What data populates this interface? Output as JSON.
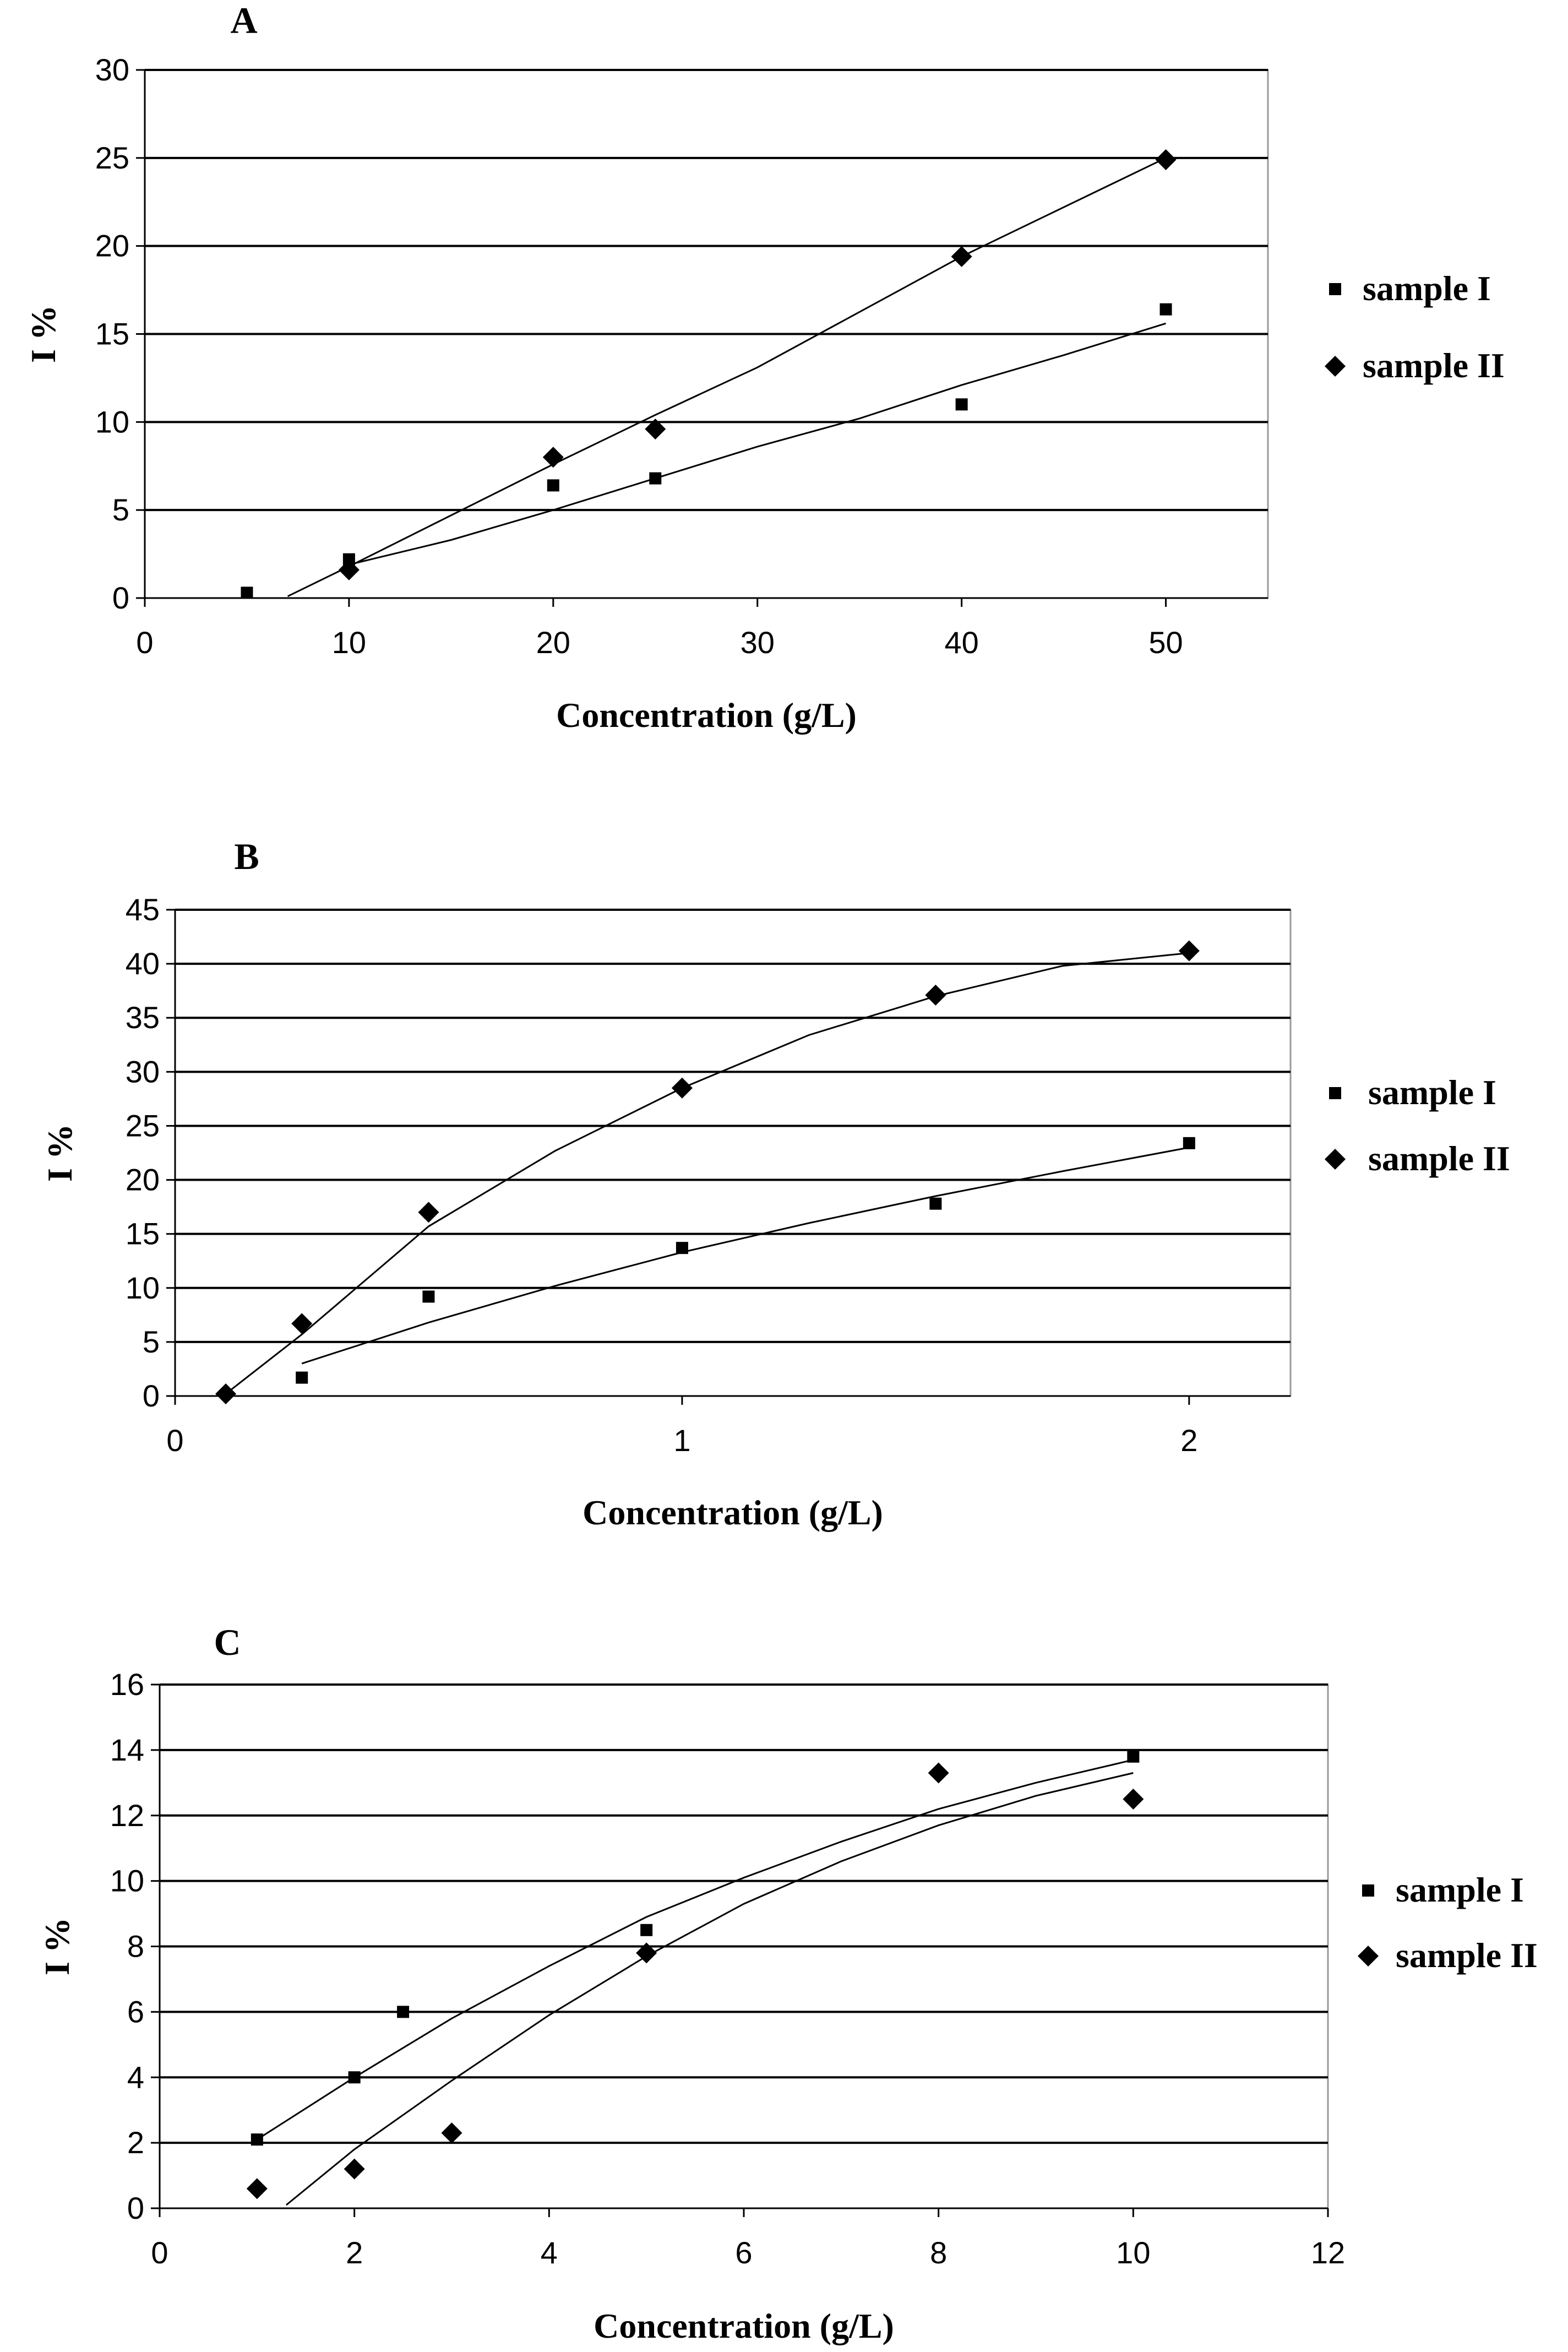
{
  "chart_data": [
    {
      "type": "scatter",
      "panel_label": "A",
      "xlabel": "Concentration (g/L)",
      "ylabel": "I %",
      "xlim": [
        0,
        55
      ],
      "ylim": [
        0,
        30
      ],
      "xticks": [
        0,
        10,
        20,
        30,
        40,
        50
      ],
      "xtick_labels": [
        "0",
        "10",
        "20",
        "30",
        "40",
        "50"
      ],
      "yticks": [
        0,
        5,
        10,
        15,
        20,
        25,
        30
      ],
      "ytick_labels": [
        "0",
        "5",
        "10",
        "15",
        "20",
        "25",
        "30"
      ],
      "grid": "horizontal",
      "legend_position": "right",
      "series": [
        {
          "name": "sample I",
          "marker": "square",
          "points": [
            [
              5,
              0.3
            ],
            [
              10,
              2.2
            ],
            [
              20,
              6.4
            ],
            [
              25,
              6.8
            ],
            [
              40,
              11.0
            ],
            [
              50,
              16.4
            ]
          ],
          "trend": [
            [
              10,
              1.9
            ],
            [
              15,
              3.3
            ],
            [
              20,
              5.0
            ],
            [
              25,
              6.8
            ],
            [
              30,
              8.6
            ],
            [
              35,
              10.2
            ],
            [
              40,
              12.1
            ],
            [
              45,
              13.8
            ],
            [
              50,
              15.6
            ]
          ]
        },
        {
          "name": "sample II",
          "marker": "diamond",
          "points": [
            [
              10,
              1.6
            ],
            [
              20,
              8.0
            ],
            [
              25,
              9.6
            ],
            [
              40,
              19.4
            ],
            [
              50,
              24.9
            ]
          ],
          "trend": [
            [
              7,
              0.1
            ],
            [
              10,
              1.8
            ],
            [
              20,
              7.6
            ],
            [
              25,
              10.4
            ],
            [
              30,
              13.1
            ],
            [
              40,
              19.4
            ],
            [
              50,
              25.0
            ]
          ]
        }
      ]
    },
    {
      "type": "scatter",
      "panel_label": "B",
      "xlabel": "Concentration (g/L)",
      "ylabel": "I %",
      "xlim": [
        0,
        2.2
      ],
      "ylim": [
        0,
        45
      ],
      "xticks": [
        0,
        1,
        2
      ],
      "xtick_labels": [
        "0",
        "1",
        "2"
      ],
      "yticks": [
        0,
        5,
        10,
        15,
        20,
        25,
        30,
        35,
        40,
        45
      ],
      "ytick_labels": [
        "0",
        "5",
        "10",
        "15",
        "20",
        "25",
        "30",
        "35",
        "40",
        "45"
      ],
      "grid": "horizontal",
      "legend_position": "right",
      "series": [
        {
          "name": "sample I",
          "marker": "square",
          "points": [
            [
              0.25,
              1.7
            ],
            [
              0.5,
              9.2
            ],
            [
              1.0,
              13.7
            ],
            [
              1.5,
              17.8
            ],
            [
              2.0,
              23.4
            ]
          ],
          "trend": [
            [
              0.25,
              3.0
            ],
            [
              0.5,
              6.8
            ],
            [
              0.75,
              10.2
            ],
            [
              1.0,
              13.3
            ],
            [
              1.25,
              16.0
            ],
            [
              1.5,
              18.5
            ],
            [
              1.75,
              20.8
            ],
            [
              2.0,
              23.0
            ]
          ]
        },
        {
          "name": "sample II",
          "marker": "diamond",
          "points": [
            [
              0.1,
              0.2
            ],
            [
              0.25,
              6.7
            ],
            [
              0.5,
              17.0
            ],
            [
              1.0,
              28.5
            ],
            [
              1.5,
              37.1
            ],
            [
              2.0,
              41.2
            ]
          ],
          "trend": [
            [
              0.1,
              0.2
            ],
            [
              0.25,
              5.7
            ],
            [
              0.5,
              15.7
            ],
            [
              0.75,
              22.7
            ],
            [
              1.0,
              28.5
            ],
            [
              1.25,
              33.4
            ],
            [
              1.5,
              37.0
            ],
            [
              1.75,
              39.8
            ],
            [
              2.0,
              41.0
            ]
          ]
        }
      ]
    },
    {
      "type": "scatter",
      "panel_label": "C",
      "xlabel": "Concentration (g/L)",
      "ylabel": "I %",
      "xlim": [
        0,
        12
      ],
      "ylim": [
        0,
        16
      ],
      "xticks": [
        0,
        2,
        4,
        6,
        8,
        10,
        12
      ],
      "xtick_labels": [
        "0",
        "2",
        "4",
        "6",
        "8",
        "10",
        "12"
      ],
      "yticks": [
        0,
        2,
        4,
        6,
        8,
        10,
        12,
        14,
        16
      ],
      "ytick_labels": [
        "0",
        "2",
        "4",
        "6",
        "8",
        "10",
        "12",
        "14",
        "16"
      ],
      "grid": "horizontal",
      "legend_position": "right",
      "series": [
        {
          "name": "sample I",
          "marker": "square",
          "points": [
            [
              1,
              2.1
            ],
            [
              2,
              4.0
            ],
            [
              2.5,
              6.0
            ],
            [
              5,
              8.5
            ],
            [
              10,
              13.8
            ]
          ],
          "trend": [
            [
              1,
              2.1
            ],
            [
              2,
              4.0
            ],
            [
              3,
              5.8
            ],
            [
              4,
              7.4
            ],
            [
              5,
              8.9
            ],
            [
              6,
              10.1
            ],
            [
              7,
              11.2
            ],
            [
              8,
              12.2
            ],
            [
              9,
              13.0
            ],
            [
              10,
              13.7
            ]
          ]
        },
        {
          "name": "sample II",
          "marker": "diamond",
          "points": [
            [
              1,
              0.6
            ],
            [
              2,
              1.2
            ],
            [
              3,
              2.3
            ],
            [
              5,
              7.8
            ],
            [
              8,
              13.3
            ],
            [
              10,
              12.5
            ]
          ],
          "trend": [
            [
              1.3,
              0.1
            ],
            [
              2,
              1.8
            ],
            [
              3,
              3.9
            ],
            [
              4,
              5.9
            ],
            [
              5,
              7.7
            ],
            [
              6,
              9.3
            ],
            [
              7,
              10.6
            ],
            [
              8,
              11.7
            ],
            [
              9,
              12.6
            ],
            [
              10,
              13.3
            ]
          ]
        }
      ]
    }
  ]
}
